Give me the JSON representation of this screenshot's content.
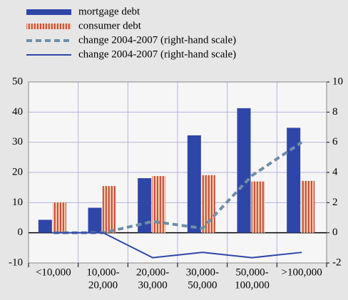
{
  "chart_data": {
    "type": "bar",
    "categories": [
      [
        "<10,000"
      ],
      [
        "10,000-",
        "20,000"
      ],
      [
        "20,000-",
        "30,000"
      ],
      [
        "30,000-",
        "50,000"
      ],
      [
        "50,000-",
        "100,000"
      ],
      [
        ">100,000"
      ]
    ],
    "series": [
      {
        "name": "mortgage debt",
        "type": "bar",
        "color": "#2e46a8",
        "values": [
          4.3,
          8.3,
          18.1,
          32.3,
          41.3,
          34.8
        ]
      },
      {
        "name": "consumer debt",
        "type": "bar",
        "color": "#c0392b",
        "values": [
          10.1,
          15.5,
          18.8,
          19.1,
          17.0,
          17.2
        ]
      },
      {
        "name": "change 2004-2007 (right-hand scale)",
        "type": "line",
        "dash": true,
        "axis": "y2",
        "color": "#6f8fa8",
        "values": [
          0,
          0,
          0.75,
          0.3,
          3.8,
          6.0
        ]
      },
      {
        "name": "change 2004-2007 (right-hand scale)",
        "type": "line",
        "dash": false,
        "axis": "y2",
        "color": "#2e46a8",
        "values": [
          0,
          0,
          -1.65,
          -1.3,
          -1.65,
          -1.3
        ]
      }
    ],
    "ylim": [
      -10,
      50
    ],
    "yticks": [
      -10,
      0,
      10,
      20,
      30,
      40,
      50
    ],
    "y2lim": [
      -2,
      10
    ],
    "y2ticks": [
      -2,
      0,
      2,
      4,
      6,
      8,
      10
    ],
    "grid": true,
    "legend": "top-left"
  }
}
